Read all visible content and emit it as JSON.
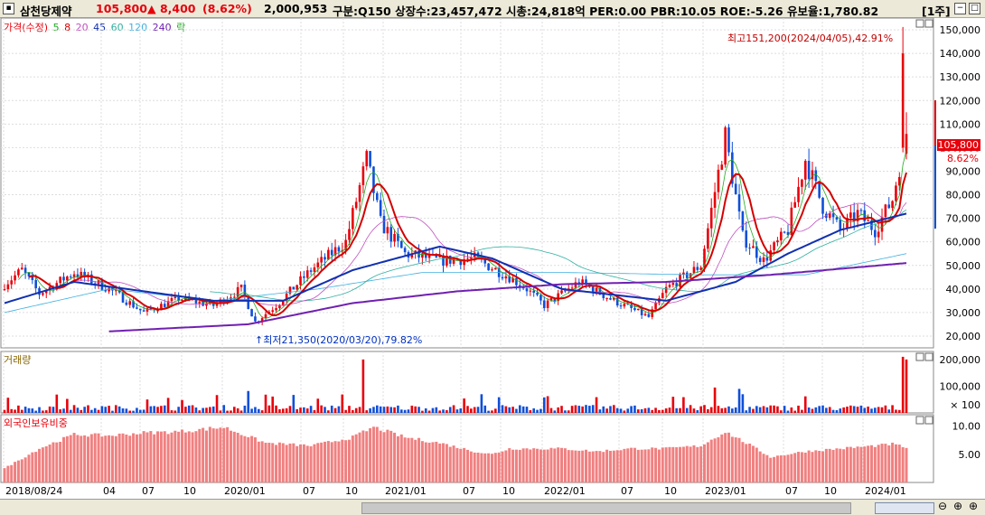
{
  "header": {
    "name": "삼천당제약",
    "price": "105,800",
    "change": "▲ 8,400",
    "change_pct": "(8.62%)",
    "volume": "2,000,953",
    "info": "구분:Q150 상장수:23,457,472 시총:24,818억 PER:0.00 PBR:10.05 ROE:-5.26 유보율:1,780.82",
    "period": "[1주]"
  },
  "legend": {
    "price": "가격(수정)",
    "ma": [
      "5",
      "8",
      "20",
      "45",
      "60",
      "120",
      "240"
    ],
    "extra": "락",
    "volume": "거래량",
    "foreign": "외국인보유비중"
  },
  "colors": {
    "up": "#e8000b",
    "down": "#0f4fd8",
    "ma5": "#22aa22",
    "ma8": "#d40000",
    "ma20": "#c050c0",
    "ma45": "#1030b0",
    "ma60": "#30b0a0",
    "ma120": "#40b0e0",
    "ma240": "#7020b0",
    "foreign": "#f08080"
  },
  "annotations": {
    "high": "최고151,200(2024/04/05),42.91%",
    "low": "최저21,350(2020/03/20),79.82%",
    "last_price": "105,800",
    "last_pct": "8.62%"
  },
  "chart_data": [
    {
      "type": "candlestick",
      "y_ticks": [
        "150,000",
        "140,000",
        "130,000",
        "120,000",
        "110,000",
        "100,000",
        "90,000",
        "80,000",
        "70,000",
        "60,000",
        "50,000",
        "40,000",
        "30,000",
        "20,000"
      ],
      "ylim": [
        15000,
        155000
      ],
      "x_ticks": [
        "2018/08/24",
        "04",
        "07",
        "10",
        "2020/01",
        "07",
        "10",
        "2021/01",
        "07",
        "10",
        "2022/01",
        "07",
        "10",
        "2023/01",
        "07",
        "10",
        "2024/01"
      ],
      "close_anchors": [
        [
          0,
          42000
        ],
        [
          5,
          48000
        ],
        [
          10,
          38000
        ],
        [
          20,
          47000
        ],
        [
          30,
          40000
        ],
        [
          40,
          30000
        ],
        [
          50,
          36000
        ],
        [
          60,
          33000
        ],
        [
          68,
          40000
        ],
        [
          72,
          26000
        ],
        [
          78,
          33000
        ],
        [
          88,
          48000
        ],
        [
          98,
          60000
        ],
        [
          104,
          95000
        ],
        [
          108,
          68000
        ],
        [
          115,
          55000
        ],
        [
          125,
          52000
        ],
        [
          135,
          53000
        ],
        [
          145,
          45000
        ],
        [
          150,
          40000
        ],
        [
          155,
          33000
        ],
        [
          165,
          43000
        ],
        [
          175,
          35000
        ],
        [
          185,
          28000
        ],
        [
          190,
          40000
        ],
        [
          200,
          50000
        ],
        [
          207,
          105000
        ],
        [
          212,
          62000
        ],
        [
          218,
          52000
        ],
        [
          225,
          65000
        ],
        [
          230,
          95000
        ],
        [
          235,
          75000
        ],
        [
          240,
          65000
        ],
        [
          245,
          72000
        ],
        [
          250,
          65000
        ],
        [
          255,
          78000
        ],
        [
          257,
          92000
        ],
        [
          258,
          140000
        ],
        [
          259,
          105800
        ]
      ],
      "ma240_anchors": [
        [
          30,
          22000
        ],
        [
          70,
          25000
        ],
        [
          100,
          34000
        ],
        [
          130,
          39000
        ],
        [
          160,
          42000
        ],
        [
          190,
          43000
        ],
        [
          220,
          46000
        ],
        [
          259,
          51000
        ]
      ],
      "ma45_anchors": [
        [
          0,
          34000
        ],
        [
          20,
          43000
        ],
        [
          60,
          35000
        ],
        [
          80,
          35000
        ],
        [
          100,
          48000
        ],
        [
          125,
          58000
        ],
        [
          140,
          53000
        ],
        [
          160,
          40000
        ],
        [
          190,
          35000
        ],
        [
          210,
          43000
        ],
        [
          225,
          55000
        ],
        [
          240,
          65000
        ],
        [
          259,
          72000
        ]
      ],
      "ma120_anchors": [
        [
          0,
          30000
        ],
        [
          30,
          40000
        ],
        [
          60,
          35000
        ],
        [
          90,
          40000
        ],
        [
          120,
          47000
        ],
        [
          160,
          47000
        ],
        [
          200,
          46000
        ],
        [
          230,
          46000
        ],
        [
          259,
          55000
        ]
      ]
    },
    {
      "type": "bar",
      "series_name": "거래량",
      "y_ticks": [
        "200,000",
        "100,000"
      ],
      "unit": "× 100",
      "ylim": [
        0,
        230000
      ]
    },
    {
      "type": "bar",
      "series_name": "외국인보유비중",
      "y_ticks": [
        "10.00",
        "5.00"
      ],
      "ylim": [
        0,
        12
      ],
      "anchors": [
        [
          0,
          2.5
        ],
        [
          10,
          6.0
        ],
        [
          20,
          8.5
        ],
        [
          30,
          8.3
        ],
        [
          40,
          8.8
        ],
        [
          50,
          9.0
        ],
        [
          63,
          9.8
        ],
        [
          75,
          7.0
        ],
        [
          88,
          6.5
        ],
        [
          100,
          8.0
        ],
        [
          106,
          9.8
        ],
        [
          115,
          8.0
        ],
        [
          125,
          7.0
        ],
        [
          135,
          5.5
        ],
        [
          140,
          5.0
        ],
        [
          145,
          6.0
        ],
        [
          160,
          6.0
        ],
        [
          170,
          5.5
        ],
        [
          180,
          6.0
        ],
        [
          190,
          6.0
        ],
        [
          200,
          6.5
        ],
        [
          207,
          9.0
        ],
        [
          213,
          7.0
        ],
        [
          220,
          4.5
        ],
        [
          230,
          5.5
        ],
        [
          240,
          6.0
        ],
        [
          250,
          6.5
        ],
        [
          255,
          6.8
        ],
        [
          259,
          6.2
        ]
      ]
    }
  ]
}
